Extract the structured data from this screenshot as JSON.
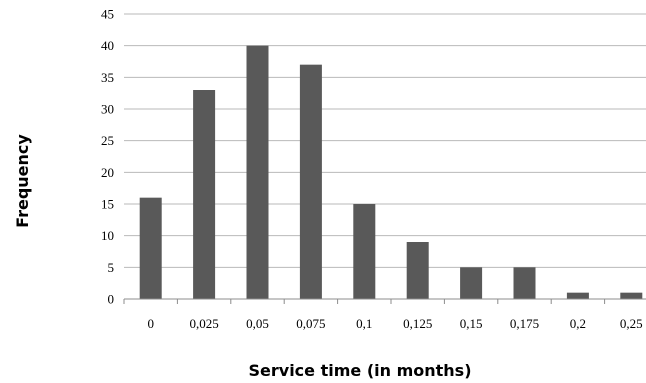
{
  "chart_data": {
    "type": "bar",
    "categories": [
      "0",
      "0,025",
      "0,05",
      "0,075",
      "0,1",
      "0,125",
      "0,15",
      "0,175",
      "0,2",
      "0,25"
    ],
    "values": [
      16,
      33,
      40,
      37,
      15,
      9,
      5,
      5,
      1,
      1
    ],
    "title": "",
    "xlabel": "Service time (in months)",
    "ylabel": "Frequency",
    "ylim": [
      0,
      45
    ],
    "yticks": [
      "0",
      "5",
      "10",
      "15",
      "20",
      "25",
      "30",
      "35",
      "40",
      "45"
    ],
    "grid": true,
    "legend": "none",
    "bar_color": "#595959",
    "grid_color": "#b9b9b9"
  }
}
